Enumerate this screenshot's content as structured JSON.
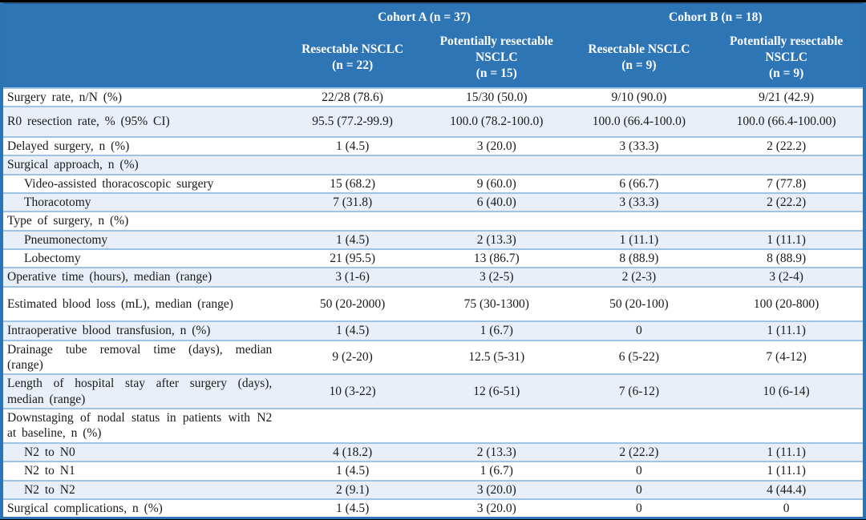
{
  "colors": {
    "header_bg": "#2E75B6",
    "header_text": "#FFFFFF",
    "stripe_row": "#E9EFF8",
    "row_separator": "#9DC3E6",
    "outer_border": "#2E74B5",
    "body_text": "#1A1A1A",
    "page_bg": "#000000"
  },
  "header": {
    "cohorts": [
      {
        "label": "Cohort A (n = 37)"
      },
      {
        "label": "Cohort B (n = 18)"
      }
    ],
    "columns": [
      {
        "name": "Resectable NSCLC",
        "n": "(n = 22)"
      },
      {
        "name": "Potentially resectable NSCLC",
        "n": "(n = 15)"
      },
      {
        "name": "Resectable NSCLC",
        "n": "(n = 9)"
      },
      {
        "name": "Potentially resectable NSCLC",
        "n": "(n = 9)"
      }
    ]
  },
  "rows": [
    {
      "label": "Surgery rate, n/N (%)",
      "indent": 0,
      "section": false,
      "tall": 0,
      "values": [
        "22/28 (78.6)",
        "15/30 (50.0)",
        "9/10 (90.0)",
        "9/21 (42.9)"
      ]
    },
    {
      "label": "R0 resection rate, % (95% CI)",
      "indent": 0,
      "section": false,
      "tall": 1,
      "values": [
        "95.5 (77.2-99.9)",
        "100.0 (78.2-100.0)",
        "100.0 (66.4-100.0)",
        "100.0 (66.4-100.00)"
      ]
    },
    {
      "label": "Delayed surgery, n (%)",
      "indent": 0,
      "section": false,
      "tall": 0,
      "values": [
        "1 (4.5)",
        "3 (20.0)",
        "3 (33.3)",
        "2 (22.2)"
      ]
    },
    {
      "label": "Surgical approach, n (%)",
      "indent": 0,
      "section": true,
      "tall": 0,
      "values": [
        "",
        "",
        "",
        ""
      ]
    },
    {
      "label": "Video-assisted thoracoscopic surgery",
      "indent": 1,
      "section": false,
      "tall": 0,
      "values": [
        "15 (68.2)",
        "9 (60.0)",
        "6 (66.7)",
        "7 (77.8)"
      ]
    },
    {
      "label": "Thoracotomy",
      "indent": 1,
      "section": false,
      "tall": 0,
      "values": [
        "7 (31.8)",
        "6 (40.0)",
        "3 (33.3)",
        "2 (22.2)"
      ]
    },
    {
      "label": "Type of surgery, n (%)",
      "indent": 0,
      "section": true,
      "tall": 0,
      "values": [
        "",
        "",
        "",
        ""
      ]
    },
    {
      "label": "Pneumonectomy",
      "indent": 1,
      "section": false,
      "tall": 0,
      "values": [
        "1 (4.5)",
        "2 (13.3)",
        "1 (11.1)",
        "1 (11.1)"
      ]
    },
    {
      "label": "Lobectomy",
      "indent": 1,
      "section": false,
      "tall": 0,
      "values": [
        "21 (95.5)",
        "13 (86.7)",
        "8 (88.9)",
        "8 (88.9)"
      ]
    },
    {
      "label": "Operative time (hours), median (range)",
      "indent": 0,
      "section": false,
      "tall": 0,
      "values": [
        "3 (1-6)",
        "3 (2-5)",
        "2 (2-3)",
        "3 (2-4)"
      ]
    },
    {
      "label": "Estimated blood loss (mL), median (range)",
      "indent": 0,
      "section": false,
      "tall": 2,
      "values": [
        "50 (20-2000)",
        "75 (30-1300)",
        "50 (20-100)",
        "100 (20-800)"
      ]
    },
    {
      "label": "Intraoperative blood transfusion, n (%)",
      "indent": 0,
      "section": false,
      "tall": 0,
      "values": [
        "1 (4.5)",
        "1 (6.7)",
        "0",
        "1 (11.1)"
      ]
    },
    {
      "label": "Drainage tube removal time (days), median (range)",
      "indent": 0,
      "section": false,
      "tall": 0,
      "values": [
        "9 (2-20)",
        "12.5 (5-31)",
        "6 (5-22)",
        "7 (4-12)"
      ]
    },
    {
      "label": "Length of hospital stay after surgery (days), median (range)",
      "indent": 0,
      "section": false,
      "tall": 0,
      "values": [
        "10 (3-22)",
        "12 (6-51)",
        "7 (6-12)",
        "10 (6-14)"
      ]
    },
    {
      "label": "Downstaging of nodal status in patients with N2 at baseline, n (%)",
      "indent": 0,
      "section": true,
      "tall": 0,
      "values": [
        "",
        "",
        "",
        ""
      ]
    },
    {
      "label": "N2 to N0",
      "indent": 1,
      "section": false,
      "tall": 0,
      "values": [
        "4 (18.2)",
        "2 (13.3)",
        "2 (22.2)",
        "1 (11.1)"
      ]
    },
    {
      "label": "N2 to N1",
      "indent": 1,
      "section": false,
      "tall": 0,
      "values": [
        "1 (4.5)",
        "1 (6.7)",
        "0",
        "1 (11.1)"
      ]
    },
    {
      "label": "N2 to N2",
      "indent": 1,
      "section": false,
      "tall": 0,
      "values": [
        "2 (9.1)",
        "3 (20.0)",
        "0",
        "4 (44.4)"
      ]
    },
    {
      "label": "Surgical complications, n (%)",
      "indent": 0,
      "section": false,
      "tall": 0,
      "values": [
        "1 (4.5)",
        "3 (20.0)",
        "0",
        "0"
      ]
    }
  ]
}
